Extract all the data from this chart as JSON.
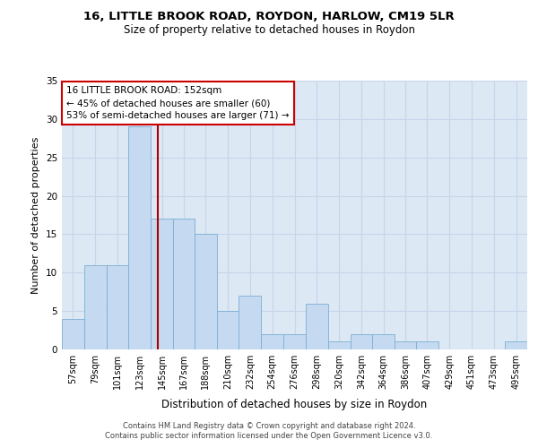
{
  "title1": "16, LITTLE BROOK ROAD, ROYDON, HARLOW, CM19 5LR",
  "title2": "Size of property relative to detached houses in Roydon",
  "xlabel": "Distribution of detached houses by size in Roydon",
  "ylabel": "Number of detached properties",
  "bin_labels": [
    "57sqm",
    "79sqm",
    "101sqm",
    "123sqm",
    "145sqm",
    "167sqm",
    "188sqm",
    "210sqm",
    "232sqm",
    "254sqm",
    "276sqm",
    "298sqm",
    "320sqm",
    "342sqm",
    "364sqm",
    "386sqm",
    "407sqm",
    "429sqm",
    "451sqm",
    "473sqm",
    "495sqm"
  ],
  "bin_edges": [
    57,
    79,
    101,
    123,
    145,
    167,
    188,
    210,
    232,
    254,
    276,
    298,
    320,
    342,
    364,
    386,
    407,
    429,
    451,
    473,
    495,
    517
  ],
  "values": [
    4,
    11,
    11,
    29,
    17,
    17,
    15,
    5,
    7,
    2,
    2,
    6,
    1,
    2,
    2,
    1,
    1,
    0,
    0,
    0,
    1
  ],
  "bar_color": "#c5d9f0",
  "bar_edge_color": "#7bafd4",
  "grid_color": "#c8d4e8",
  "background_color": "#dde8f5",
  "ref_line_x": 152,
  "ref_line_color": "#aa0000",
  "annotation_line1": "16 LITTLE BROOK ROAD: 152sqm",
  "annotation_line2": "← 45% of detached houses are smaller (60)",
  "annotation_line3": "53% of semi-detached houses are larger (71) →",
  "annotation_box_color": "#ffffff",
  "annotation_box_edge": "#cc0000",
  "ylim": [
    0,
    35
  ],
  "yticks": [
    0,
    5,
    10,
    15,
    20,
    25,
    30,
    35
  ],
  "footer1": "Contains HM Land Registry data © Crown copyright and database right 2024.",
  "footer2": "Contains public sector information licensed under the Open Government Licence v3.0."
}
